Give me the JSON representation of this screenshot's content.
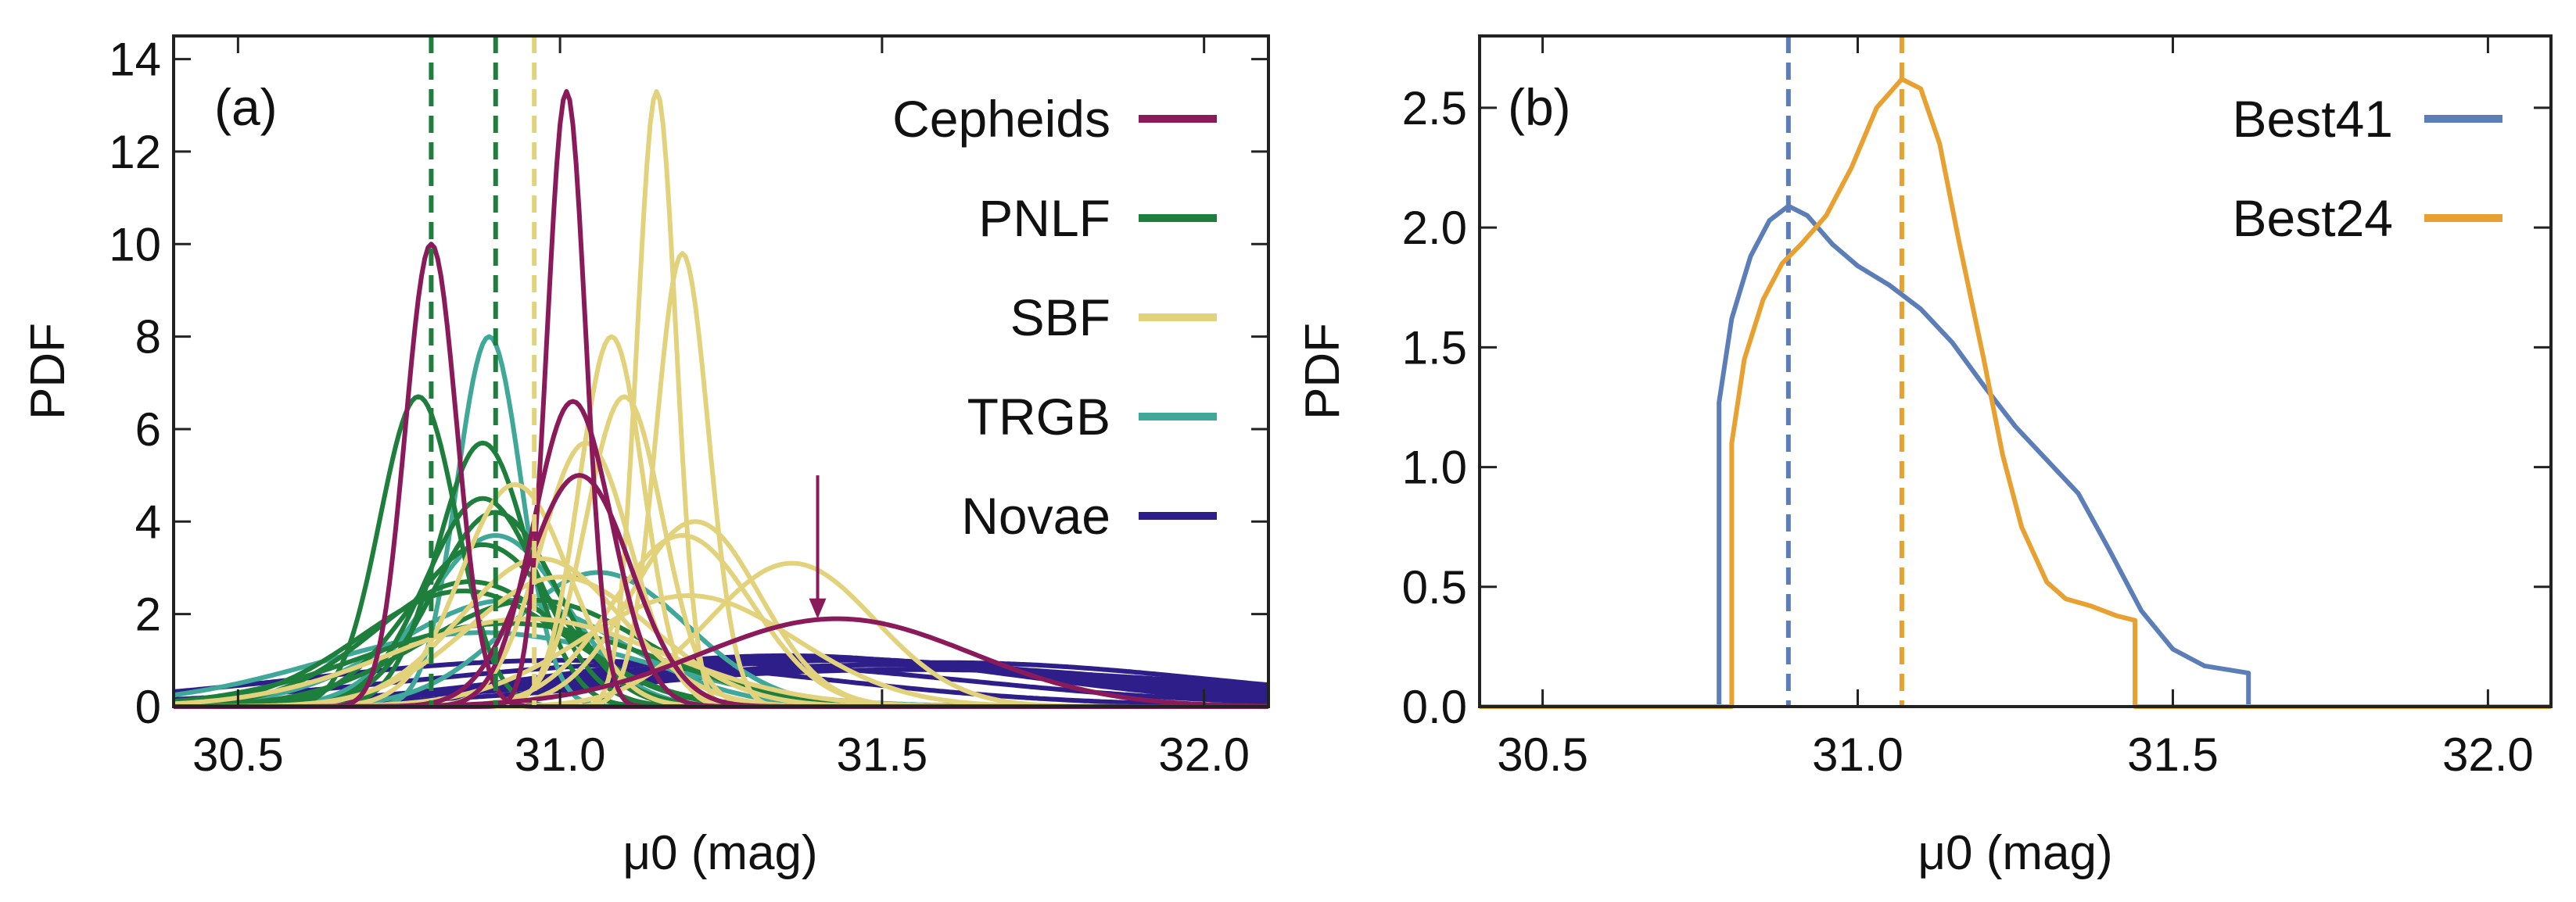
{
  "chart_data": [
    {
      "type": "line",
      "panel_label": "(a)",
      "xlabel": "μ0 (mag)",
      "ylabel": "PDF",
      "xlim": [
        30.4,
        32.1
      ],
      "ylim": [
        0,
        14.5
      ],
      "xticks": [
        30.5,
        31.0,
        31.5,
        32.0
      ],
      "xtick_labels": [
        "30.5",
        "31.0",
        "31.5",
        "32.0"
      ],
      "yticks": [
        0,
        2,
        4,
        6,
        8,
        10,
        12,
        14
      ],
      "ytick_labels": [
        "0",
        "2",
        "4",
        "6",
        "8",
        "10",
        "12",
        "14"
      ],
      "legend_position": "top-right",
      "legend": [
        {
          "label": "Cepheids",
          "color": "#8B1A5B"
        },
        {
          "label": "PNLF",
          "color": "#1E7F3C"
        },
        {
          "label": "SBF",
          "color": "#E2D27C"
        },
        {
          "label": "TRGB",
          "color": "#3FA898"
        },
        {
          "label": "Novae",
          "color": "#2E1E8A"
        }
      ],
      "vlines": [
        {
          "x": 30.8,
          "color": "#1E7F3C",
          "style": "dashed"
        },
        {
          "x": 30.9,
          "color": "#1E7F3C",
          "style": "dashed"
        },
        {
          "x": 30.96,
          "color": "#E2D27C",
          "style": "dashed"
        }
      ],
      "arrow": {
        "x": 31.4,
        "y_from": 5.0,
        "y_to": 1.9,
        "color": "#8B1A5B"
      },
      "series": [
        {
          "group": "Cepheids",
          "shape": "gaussian",
          "mu": 30.8,
          "peak": 10.0
        },
        {
          "group": "Cepheids",
          "shape": "gaussian",
          "mu": 31.01,
          "peak": 13.3
        },
        {
          "group": "Cepheids",
          "shape": "gaussian",
          "mu": 31.02,
          "peak": 6.6
        },
        {
          "group": "Cepheids",
          "shape": "gaussian",
          "mu": 31.03,
          "peak": 5.0
        },
        {
          "group": "Cepheids",
          "shape": "gaussian",
          "mu": 31.43,
          "peak": 1.9
        },
        {
          "group": "PNLF",
          "shape": "gaussian",
          "mu": 30.78,
          "peak": 6.7
        },
        {
          "group": "PNLF",
          "shape": "gaussian",
          "mu": 30.88,
          "peak": 5.7
        },
        {
          "group": "PNLF",
          "shape": "gaussian",
          "mu": 30.88,
          "peak": 4.5
        },
        {
          "group": "PNLF",
          "shape": "gaussian",
          "mu": 30.9,
          "peak": 4.2
        },
        {
          "group": "PNLF",
          "shape": "gaussian",
          "mu": 30.88,
          "peak": 3.5
        },
        {
          "group": "PNLF",
          "shape": "gaussian",
          "mu": 30.86,
          "peak": 2.7
        },
        {
          "group": "PNLF",
          "shape": "gaussian",
          "mu": 30.85,
          "peak": 2.5
        },
        {
          "group": "PNLF",
          "shape": "gaussian",
          "mu": 30.96,
          "peak": 2.3
        },
        {
          "group": "PNLF",
          "shape": "gaussian",
          "mu": 30.92,
          "peak": 1.8
        },
        {
          "group": "SBF",
          "shape": "gaussian",
          "mu": 31.15,
          "peak": 13.3
        },
        {
          "group": "SBF",
          "shape": "gaussian",
          "mu": 31.19,
          "peak": 9.8
        },
        {
          "group": "SBF",
          "shape": "gaussian",
          "mu": 31.08,
          "peak": 8.0
        },
        {
          "group": "SBF",
          "shape": "gaussian",
          "mu": 31.1,
          "peak": 6.7
        },
        {
          "group": "SBF",
          "shape": "gaussian",
          "mu": 31.04,
          "peak": 5.7
        },
        {
          "group": "SBF",
          "shape": "gaussian",
          "mu": 30.93,
          "peak": 4.8
        },
        {
          "group": "SBF",
          "shape": "gaussian",
          "mu": 31.21,
          "peak": 4.0
        },
        {
          "group": "SBF",
          "shape": "gaussian",
          "mu": 31.19,
          "peak": 3.7
        },
        {
          "group": "SBF",
          "shape": "gaussian",
          "mu": 30.97,
          "peak": 3.2
        },
        {
          "group": "SBF",
          "shape": "gaussian",
          "mu": 31.36,
          "peak": 3.1
        },
        {
          "group": "SBF",
          "shape": "gaussian",
          "mu": 31.0,
          "peak": 2.8
        },
        {
          "group": "SBF",
          "shape": "gaussian",
          "mu": 31.2,
          "peak": 2.4
        },
        {
          "group": "SBF",
          "shape": "gaussian",
          "mu": 30.95,
          "peak": 1.9
        },
        {
          "group": "TRGB",
          "shape": "gaussian",
          "mu": 30.89,
          "peak": 8.0
        },
        {
          "group": "TRGB",
          "shape": "gaussian",
          "mu": 30.9,
          "peak": 3.7
        },
        {
          "group": "TRGB",
          "shape": "gaussian",
          "mu": 31.06,
          "peak": 2.9
        },
        {
          "group": "TRGB",
          "shape": "gaussian",
          "mu": 30.92,
          "peak": 2.3
        },
        {
          "group": "TRGB",
          "shape": "gaussian",
          "mu": 30.88,
          "peak": 1.6
        },
        {
          "group": "Novae",
          "shape": "gaussian",
          "mu": 31.0,
          "peak": 1.0
        },
        {
          "group": "Novae",
          "shape": "gaussian",
          "mu": 31.2,
          "peak": 0.95
        },
        {
          "group": "Novae",
          "shape": "gaussian",
          "mu": 31.35,
          "peak": 1.1
        },
        {
          "group": "Novae",
          "shape": "gaussian",
          "mu": 31.4,
          "peak": 1.05
        },
        {
          "group": "Novae",
          "shape": "gaussian",
          "mu": 31.45,
          "peak": 1.0
        },
        {
          "group": "Novae",
          "shape": "gaussian",
          "mu": 31.5,
          "peak": 0.9
        },
        {
          "group": "Novae",
          "shape": "gaussian",
          "mu": 31.6,
          "peak": 0.95
        },
        {
          "group": "Novae",
          "shape": "gaussian",
          "mu": 31.55,
          "peak": 0.8
        }
      ]
    },
    {
      "type": "line",
      "panel_label": "(b)",
      "xlabel": "μ0 (mag)",
      "ylabel": "PDF",
      "xlim": [
        30.4,
        32.1
      ],
      "ylim": [
        0,
        2.8
      ],
      "xticks": [
        30.5,
        31.0,
        31.5,
        32.0
      ],
      "xtick_labels": [
        "30.5",
        "31.0",
        "31.5",
        "32.0"
      ],
      "yticks": [
        0,
        0.5,
        1.0,
        1.5,
        2.0,
        2.5
      ],
      "ytick_labels": [
        "0.0",
        "0.5",
        "1.0",
        "1.5",
        "2.0",
        "2.5"
      ],
      "legend_position": "top-right",
      "legend": [
        {
          "label": "Best41",
          "color": "#5B7DB8"
        },
        {
          "label": "Best24",
          "color": "#E8A030"
        }
      ],
      "vlines": [
        {
          "x": 30.89,
          "color": "#5B7DB8",
          "style": "dashed"
        },
        {
          "x": 31.07,
          "color": "#E8A030",
          "style": "dashed"
        }
      ],
      "series": [
        {
          "name": "Best41",
          "color": "#5B7DB8",
          "x": [
            30.4,
            30.78,
            30.78,
            30.8,
            30.83,
            30.86,
            30.89,
            30.92,
            30.96,
            31.0,
            31.05,
            31.1,
            31.15,
            31.2,
            31.25,
            31.3,
            31.35,
            31.4,
            31.45,
            31.5,
            31.55,
            31.62,
            31.62,
            32.1
          ],
          "y": [
            0.0,
            0.0,
            1.27,
            1.62,
            1.88,
            2.03,
            2.09,
            2.05,
            1.93,
            1.84,
            1.76,
            1.66,
            1.52,
            1.34,
            1.17,
            1.03,
            0.89,
            0.65,
            0.4,
            0.24,
            0.17,
            0.14,
            0.0,
            0.0
          ]
        },
        {
          "name": "Best24",
          "color": "#E8A030",
          "x": [
            30.4,
            30.8,
            30.8,
            30.82,
            30.85,
            30.88,
            30.91,
            30.95,
            30.99,
            31.03,
            31.07,
            31.1,
            31.13,
            31.16,
            31.2,
            31.23,
            31.26,
            31.3,
            31.33,
            31.37,
            31.41,
            31.44,
            31.44,
            32.1
          ],
          "y": [
            0.0,
            0.0,
            1.1,
            1.45,
            1.7,
            1.85,
            1.93,
            2.05,
            2.25,
            2.5,
            2.62,
            2.58,
            2.35,
            1.95,
            1.45,
            1.05,
            0.75,
            0.52,
            0.45,
            0.42,
            0.38,
            0.36,
            0.0,
            0.0
          ]
        }
      ]
    }
  ]
}
